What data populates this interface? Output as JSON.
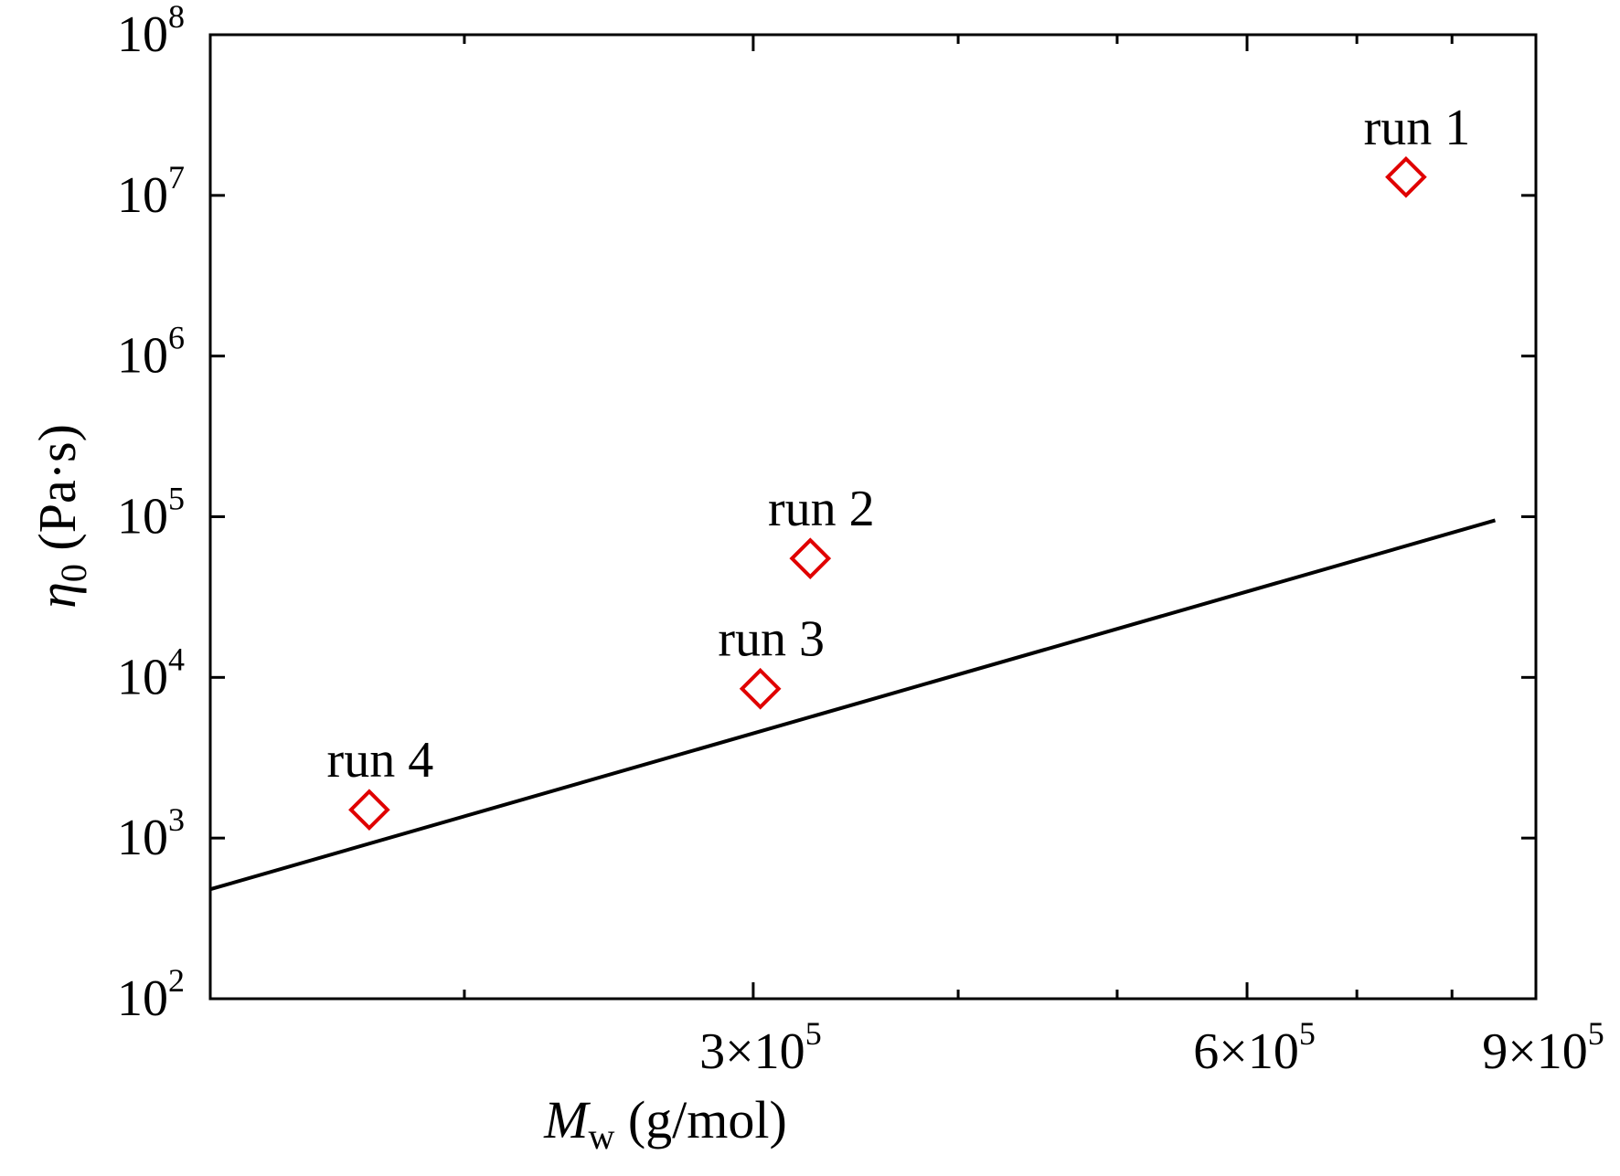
{
  "chart_data": {
    "type": "scatter",
    "x_scale": "log",
    "y_scale": "log",
    "xlim": [
      140000,
      900000
    ],
    "ylim": [
      100,
      100000000
    ],
    "x_ticks": [
      {
        "value": 300000,
        "mantissa": "3×10",
        "exponent": "5"
      },
      {
        "value": 600000,
        "mantissa": "6×10",
        "exponent": "5"
      },
      {
        "value": 900000,
        "mantissa": "9×10",
        "exponent": "5"
      }
    ],
    "y_ticks": [
      {
        "value": 100,
        "base": "10",
        "exponent": "2"
      },
      {
        "value": 1000,
        "base": "10",
        "exponent": "3"
      },
      {
        "value": 10000,
        "base": "10",
        "exponent": "4"
      },
      {
        "value": 100000,
        "base": "10",
        "exponent": "5"
      },
      {
        "value": 1000000,
        "base": "10",
        "exponent": "6"
      },
      {
        "value": 10000000,
        "base": "10",
        "exponent": "7"
      },
      {
        "value": 100000000,
        "base": "10",
        "exponent": "8"
      }
    ],
    "x_minor_ticks": [
      200000,
      400000,
      500000,
      700000,
      800000
    ],
    "xlabel": {
      "symbol": "M",
      "subscript": "w",
      "unit": " (g/mol)"
    },
    "ylabel": {
      "symbol": "η",
      "subscript": "0",
      "unit": " (Pa·s)"
    },
    "series": [
      {
        "type": "scatter",
        "marker": "diamond",
        "color": "#e00000",
        "points": [
          {
            "x": 750000,
            "y": 13000000,
            "label": "run 1"
          },
          {
            "x": 325000,
            "y": 55000,
            "label": "run 2"
          },
          {
            "x": 303000,
            "y": 8500,
            "label": "run 3"
          },
          {
            "x": 175000,
            "y": 1500,
            "label": "run 4"
          }
        ]
      },
      {
        "type": "line",
        "color": "#000000",
        "points": [
          {
            "x": 140000,
            "y": 480
          },
          {
            "x": 850000,
            "y": 95000
          }
        ]
      }
    ],
    "grid": false,
    "legend": "none"
  }
}
